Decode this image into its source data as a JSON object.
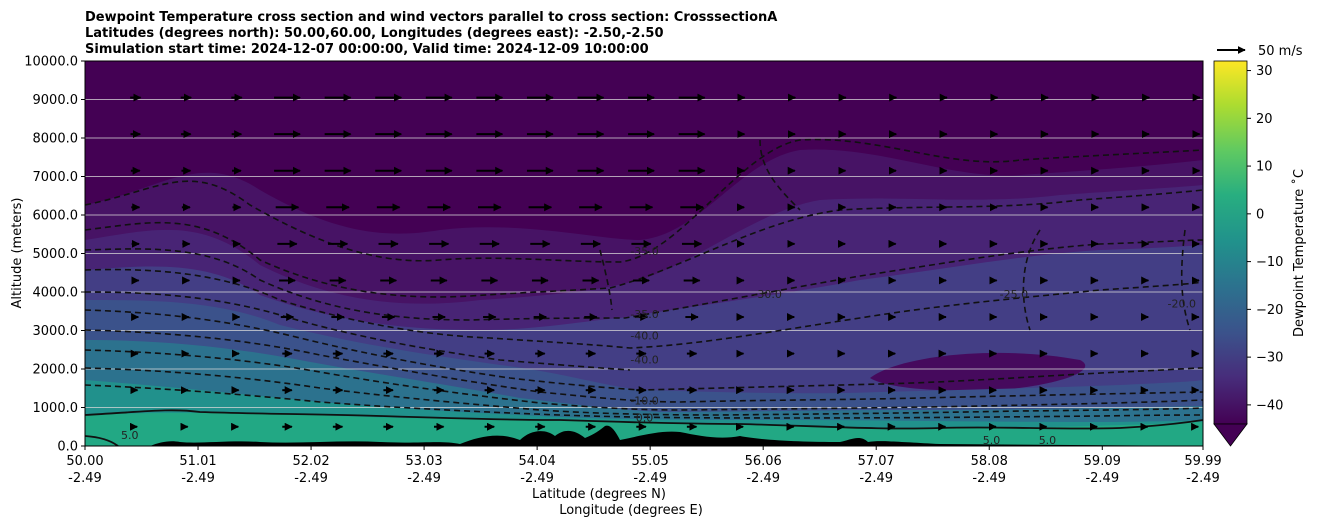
{
  "title": {
    "line1": "Dewpoint Temperature cross section and wind vectors parallel to cross section: CrosssectionA",
    "line2": "Latitudes (degrees north): 50.00,60.00, Longitudes (degrees east): -2.50,-2.50",
    "line3": "Simulation start time: 2024-12-07 00:00:00, Valid time: 2024-12-09 10:00:00"
  },
  "chart_data": {
    "type": "heatmap",
    "xlabel_lat": "Latitude (degrees N)",
    "xlabel_lon": "Longitude (degrees E)",
    "ylabel": "Altitude (meters)",
    "xlim": [
      50.0,
      59.99
    ],
    "ylim": [
      0,
      10000
    ],
    "grid": "horizontal",
    "x_ticks": [
      {
        "lat": "50.00",
        "lon": "-2.49",
        "v": 50.0
      },
      {
        "lat": "51.01",
        "lon": "-2.49",
        "v": 51.01
      },
      {
        "lat": "52.02",
        "lon": "-2.49",
        "v": 52.02
      },
      {
        "lat": "53.03",
        "lon": "-2.49",
        "v": 53.03
      },
      {
        "lat": "54.04",
        "lon": "-2.49",
        "v": 54.04
      },
      {
        "lat": "55.05",
        "lon": "-2.49",
        "v": 55.05
      },
      {
        "lat": "56.06",
        "lon": "-2.49",
        "v": 56.06
      },
      {
        "lat": "57.07",
        "lon": "-2.49",
        "v": 57.07
      },
      {
        "lat": "58.08",
        "lon": "-2.49",
        "v": 58.08
      },
      {
        "lat": "59.09",
        "lon": "-2.49",
        "v": 59.09
      },
      {
        "lat": "59.99",
        "lon": "-2.49",
        "v": 59.99
      }
    ],
    "y_ticks": [
      {
        "label": "0.0",
        "v": 0
      },
      {
        "label": "1000.0",
        "v": 1000
      },
      {
        "label": "2000.0",
        "v": 2000
      },
      {
        "label": "3000.0",
        "v": 3000
      },
      {
        "label": "4000.0",
        "v": 4000
      },
      {
        "label": "5000.0",
        "v": 5000
      },
      {
        "label": "6000.0",
        "v": 6000
      },
      {
        "label": "7000.0",
        "v": 7000
      },
      {
        "label": "8000.0",
        "v": 8000
      },
      {
        "label": "9000.0",
        "v": 9000
      },
      {
        "label": "10000.0",
        "v": 10000
      }
    ],
    "colorbar": {
      "label": "Dewpoint Temperature $^\\circ$C",
      "label_display": "Dewpoint Temperature ˚C",
      "range": [
        -44,
        32
      ],
      "ticks": [
        {
          "label": "−40",
          "v": -40
        },
        {
          "label": "−30",
          "v": -30
        },
        {
          "label": "−20",
          "v": -20
        },
        {
          "label": "−10",
          "v": -10
        },
        {
          "label": "0",
          "v": 0
        },
        {
          "label": "10",
          "v": 10
        },
        {
          "label": "20",
          "v": 20
        },
        {
          "label": "30",
          "v": 30
        }
      ],
      "extend": "min",
      "colormap": "viridis"
    },
    "quiver_key": {
      "label": "50 m/s",
      "speed": 50
    },
    "contour_labels": [
      {
        "text": "-35.0",
        "x": 55.0,
        "y": 4960
      },
      {
        "text": "-35.0",
        "x": 55.0,
        "y": 3320
      },
      {
        "text": "-40.0",
        "x": 55.0,
        "y": 2760
      },
      {
        "text": "-40.0",
        "x": 55.0,
        "y": 2140
      },
      {
        "text": "-10.0",
        "x": 55.0,
        "y": 1080
      },
      {
        "text": "0.0",
        "x": 55.0,
        "y": 640
      },
      {
        "text": "-30.0",
        "x": 56.1,
        "y": 3840
      },
      {
        "text": "-25.0",
        "x": 58.3,
        "y": 3840
      },
      {
        "text": "-20.0",
        "x": 59.8,
        "y": 3600
      },
      {
        "text": "5.0",
        "x": 50.4,
        "y": 180
      },
      {
        "text": "5.0",
        "x": 58.1,
        "y": 50
      },
      {
        "text": "5.0",
        "x": 58.6,
        "y": 50
      }
    ],
    "colors": {
      "viridis_min": "#440154",
      "viridis_max": "#fde725",
      "terrain": "#000000",
      "grid": "#d9d9d9"
    }
  }
}
